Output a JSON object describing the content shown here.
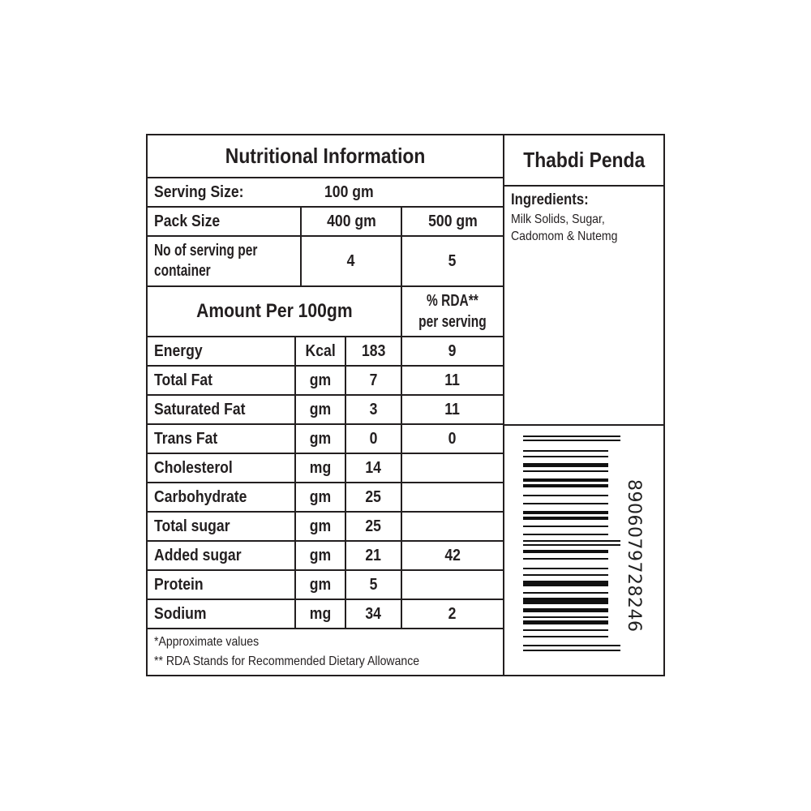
{
  "title": "Nutritional Information",
  "product_name": "Thabdi Penda",
  "serving_size": {
    "label": "Serving  Size:",
    "value": "100 gm"
  },
  "pack_size": {
    "label": "Pack Size",
    "values": [
      "400 gm",
      "500 gm"
    ]
  },
  "servings_per_container": {
    "label_line1": "No of serving per",
    "label_line2": "container",
    "values": [
      "4",
      "5"
    ]
  },
  "amount_header": "Amount Per 100gm",
  "rda_header": {
    "line1": "% RDA**",
    "line2": "per serving"
  },
  "nutrients": [
    {
      "name": "Energy",
      "unit": "Kcal",
      "value": "183",
      "rda": "9"
    },
    {
      "name": "Total Fat",
      "unit": "gm",
      "value": "7",
      "rda": "11"
    },
    {
      "name": "Saturated Fat",
      "unit": "gm",
      "value": "3",
      "rda": "11"
    },
    {
      "name": "Trans Fat",
      "unit": "gm",
      "value": "0",
      "rda": "0"
    },
    {
      "name": "Cholesterol",
      "unit": "mg",
      "value": "14",
      "rda": ""
    },
    {
      "name": "Carbohydrate",
      "unit": "gm",
      "value": "25",
      "rda": ""
    },
    {
      "name": "Total sugar",
      "unit": "gm",
      "value": "25",
      "rda": ""
    },
    {
      "name": "Added sugar",
      "unit": "gm",
      "value": "21",
      "rda": "42"
    },
    {
      "name": "Protein",
      "unit": "gm",
      "value": "5",
      "rda": ""
    },
    {
      "name": "Sodium",
      "unit": "mg",
      "value": "34",
      "rda": "2"
    }
  ],
  "footnotes": [
    "*Approximate values",
    "** RDA  Stands for Recommended Dietary Allowance"
  ],
  "ingredients": {
    "label": "Ingredients:",
    "line1": "Milk Solids, Sugar,",
    "line2": "Cadomom & Nutemg"
  },
  "barcode": {
    "digits": "8906079728246"
  }
}
